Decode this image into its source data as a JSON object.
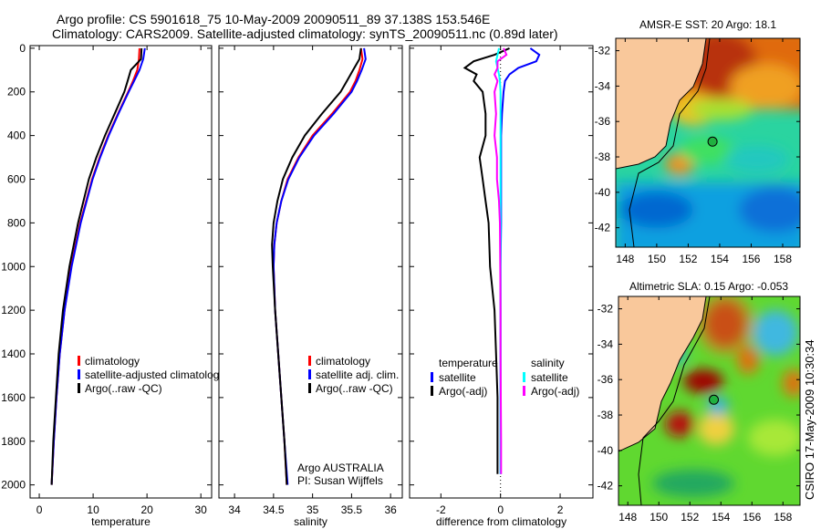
{
  "header": {
    "title_line1": "Argo profile: CS 5901618_75 10-May-2009 20090511_89 37.138S 153.546E",
    "title_line2": "Climatology: CARS2009. Satellite-adjusted climatology: synTS_20090511.nc (0.89d later)"
  },
  "credit": "CSIRO 17-May-2009 10:30:34",
  "profile_position": {
    "lon": 153.546,
    "lat": -37.138
  },
  "colors": {
    "climatology": "#ff0000",
    "satellite": "#0000ff",
    "argo": "#000000",
    "sal_satellite": "#00ffff",
    "sal_argo": "#ff00ff",
    "land": "#f9c89b"
  },
  "chart_data": [
    {
      "type": "line",
      "xlabel": "temperature",
      "ylabel": "",
      "xlim": [
        -1.7,
        32
      ],
      "ylim": [
        2060,
        -12
      ],
      "xticks": [
        0,
        10,
        20,
        30
      ],
      "yticks": [
        0,
        200,
        400,
        600,
        800,
        1000,
        1200,
        1400,
        1600,
        1800,
        2000
      ],
      "depth": [
        0,
        50,
        100,
        150,
        200,
        300,
        400,
        500,
        600,
        800,
        1000,
        1200,
        1400,
        1600,
        1800,
        2000
      ],
      "series": [
        {
          "name": "climatology",
          "color": "#ff0000",
          "values": [
            18.6,
            18.5,
            18.2,
            17.4,
            16.5,
            14.6,
            12.8,
            11.2,
            9.8,
            7.6,
            5.9,
            4.7,
            3.8,
            3.2,
            2.7,
            2.3
          ]
        },
        {
          "name": "satellite-adjusted climatology",
          "color": "#0000ff",
          "values": [
            19.6,
            19.3,
            18.6,
            17.6,
            16.6,
            14.7,
            12.9,
            11.3,
            9.9,
            7.7,
            6.0,
            4.7,
            3.8,
            3.2,
            2.7,
            2.3
          ]
        },
        {
          "name": "Argo(..raw -QC)",
          "color": "#000000",
          "values": [
            19.0,
            18.9,
            17.0,
            16.4,
            15.8,
            14.0,
            12.2,
            10.6,
            9.2,
            7.2,
            5.6,
            4.4,
            3.6,
            3.1,
            2.6,
            2.3
          ]
        }
      ],
      "legend": [
        "climatology",
        "satellite-adjusted climatology",
        "Argo(..raw -QC)"
      ],
      "legend_position": "bottom-right"
    },
    {
      "type": "line",
      "xlabel": "salinity",
      "ylabel": "",
      "xlim": [
        33.8,
        36.15
      ],
      "ylim": [
        2060,
        -12
      ],
      "xticks": [
        34,
        34.5,
        35,
        35.5,
        36
      ],
      "xticklabels": [
        "34",
        "34.5",
        "35",
        "35.5",
        "36"
      ],
      "depth": [
        0,
        50,
        100,
        150,
        200,
        300,
        400,
        500,
        600,
        700,
        800,
        900,
        1000,
        1200,
        1400,
        1600,
        1800,
        2000
      ],
      "series": [
        {
          "name": "climatology",
          "color": "#ff0000",
          "values": [
            35.62,
            35.64,
            35.6,
            35.55,
            35.48,
            35.25,
            35.0,
            34.82,
            34.68,
            34.6,
            34.54,
            34.51,
            34.5,
            34.52,
            34.56,
            34.6,
            34.64,
            34.67
          ]
        },
        {
          "name": "satellite adj. clim.",
          "color": "#0000ff",
          "values": [
            35.66,
            35.68,
            35.63,
            35.57,
            35.5,
            35.27,
            35.02,
            34.83,
            34.69,
            34.6,
            34.54,
            34.51,
            34.5,
            34.52,
            34.56,
            34.6,
            34.64,
            34.68
          ]
        },
        {
          "name": "Argo(..raw -QC)",
          "color": "#000000",
          "values": [
            35.62,
            35.6,
            35.52,
            35.44,
            35.36,
            35.12,
            34.9,
            34.74,
            34.62,
            34.55,
            34.5,
            34.48,
            34.49,
            34.52,
            34.56,
            34.6,
            34.64,
            34.67
          ]
        }
      ],
      "legend": [
        "climatology",
        "satellite adj. clim.",
        "Argo(..raw -QC)"
      ],
      "annotation": [
        "Argo AUSTRALIA",
        "PI: Susan Wijffels"
      ]
    },
    {
      "type": "line",
      "xlabel": "difference from climatology",
      "ylabel": "",
      "xlim": [
        -3.05,
        3.1
      ],
      "ylim": [
        2060,
        -12
      ],
      "xticks": [
        -2,
        0,
        2
      ],
      "depth": [
        0,
        30,
        60,
        90,
        120,
        150,
        200,
        300,
        400,
        500,
        600,
        700,
        800,
        1000,
        1200,
        1400,
        1600,
        1800,
        1950
      ],
      "series": [
        {
          "name": "temperature satellite",
          "color": "#0000ff",
          "values": [
            1.0,
            1.3,
            1.2,
            0.6,
            0.3,
            0.15,
            0.1,
            0.05,
            0.02,
            0.02,
            0.02,
            0.02,
            0.02,
            0.0,
            0.0,
            0.0,
            0.0,
            0.0,
            0.0
          ]
        },
        {
          "name": "temperature Argo(-adj)",
          "color": "#000000",
          "values": [
            0.3,
            -0.2,
            -0.9,
            -1.2,
            -0.8,
            -0.9,
            -0.6,
            -0.5,
            -0.5,
            -0.7,
            -0.6,
            -0.5,
            -0.4,
            -0.35,
            -0.2,
            -0.15,
            -0.1,
            -0.1,
            -0.1
          ]
        },
        {
          "name": "salinity satellite",
          "color": "#00ffff",
          "values": [
            -0.05,
            -0.1,
            -0.15,
            -0.1,
            -0.05,
            -0.02,
            0.0,
            0.0,
            0.0,
            0.0,
            0.0,
            0.0,
            0.0,
            0.0,
            0.0,
            0.0,
            0.0,
            0.0,
            0.0
          ]
        },
        {
          "name": "salinity Argo(-adj)",
          "color": "#ff00ff",
          "values": [
            0.1,
            0.2,
            -0.1,
            -0.1,
            -0.2,
            -0.1,
            -0.2,
            -0.15,
            -0.2,
            -0.12,
            -0.12,
            -0.05,
            -0.02,
            -0.01,
            0.0,
            0.0,
            0.01,
            0.02,
            0.02
          ]
        }
      ],
      "legend_headers": [
        "temperature",
        "salinity"
      ],
      "legend": [
        "satellite",
        "Argo(-adj)",
        "satellite",
        "Argo(-adj)"
      ]
    }
  ],
  "maps": [
    {
      "title": "AMSR-E SST: 20 Argo: 18.1",
      "lon_ticks": [
        148,
        150,
        152,
        154,
        156,
        158
      ],
      "lat_ticks": [
        -32,
        -34,
        -36,
        -38,
        -40,
        -42
      ]
    },
    {
      "title": "Altimetric SLA: 0.15 Argo: -0.053",
      "lon_ticks": [
        148,
        150,
        152,
        154,
        156,
        158
      ],
      "lat_ticks": [
        -32,
        -34,
        -36,
        -38,
        -40,
        -42
      ]
    }
  ]
}
